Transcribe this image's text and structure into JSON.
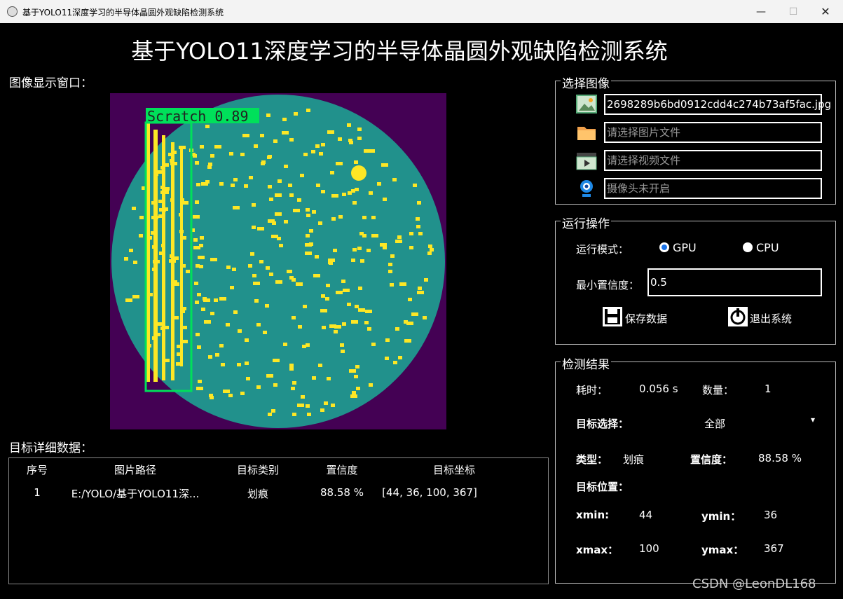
{
  "window": {
    "title": "基于YOLO11深度学习的半导体晶圆外观缺陷检测系统",
    "minimize": "—",
    "maximize": "☐",
    "close": "✕"
  },
  "app_title": "基于YOLO11深度学习的半导体晶圆外观缺陷检测系统",
  "image_panel": {
    "label": "图像显示窗口：",
    "detection_label": "Scratch  0.89"
  },
  "table": {
    "label": "目标详细数据：",
    "headers": [
      "序号",
      "图片路径",
      "目标类别",
      "置信度",
      "目标坐标"
    ],
    "rows": [
      {
        "index": "1",
        "path": "E:/YOLO/基于YOLO11深...",
        "class": "划痕",
        "confidence": "88.58 %",
        "coords": "[44, 36, 100, 367]"
      }
    ]
  },
  "select_image": {
    "title": "选择图像",
    "image_value": "2698289b6bd0912cdd4c274b73af5fac.jpg",
    "folder_placeholder": "请选择图片文件",
    "video_placeholder": "请选择视频文件",
    "camera_placeholder": "摄像头未开启"
  },
  "run": {
    "title": "运行操作",
    "mode_label": "运行模式：",
    "gpu": "GPU",
    "cpu": "CPU",
    "selected_mode": "GPU",
    "conf_label": "最小置信度：",
    "conf_value": "0.5",
    "save_label": "保存数据",
    "exit_label": "退出系统"
  },
  "results": {
    "title": "检测结果",
    "time_label": "耗时：",
    "time_value": "0.056 s",
    "count_label": "数量：",
    "count_value": "1",
    "target_label": "目标选择：",
    "target_value": "全部",
    "type_label": "类型：",
    "type_value": "划痕",
    "conf_label": "置信度：",
    "conf_value": "88.58 %",
    "pos_label": "目标位置：",
    "xmin_label": "xmin:",
    "xmin_value": "44",
    "ymin_label": "ymin：",
    "ymin_value": "36",
    "xmax_label": "xmax：",
    "xmax_value": "100",
    "ymax_label": "ymax：",
    "ymax_value": "367"
  },
  "watermark": "CSDN @LeonDL168",
  "colors": {
    "wafer_bg": "#440154",
    "wafer_body": "#21918c",
    "defect": "#fde725",
    "box": "#00e05a"
  }
}
